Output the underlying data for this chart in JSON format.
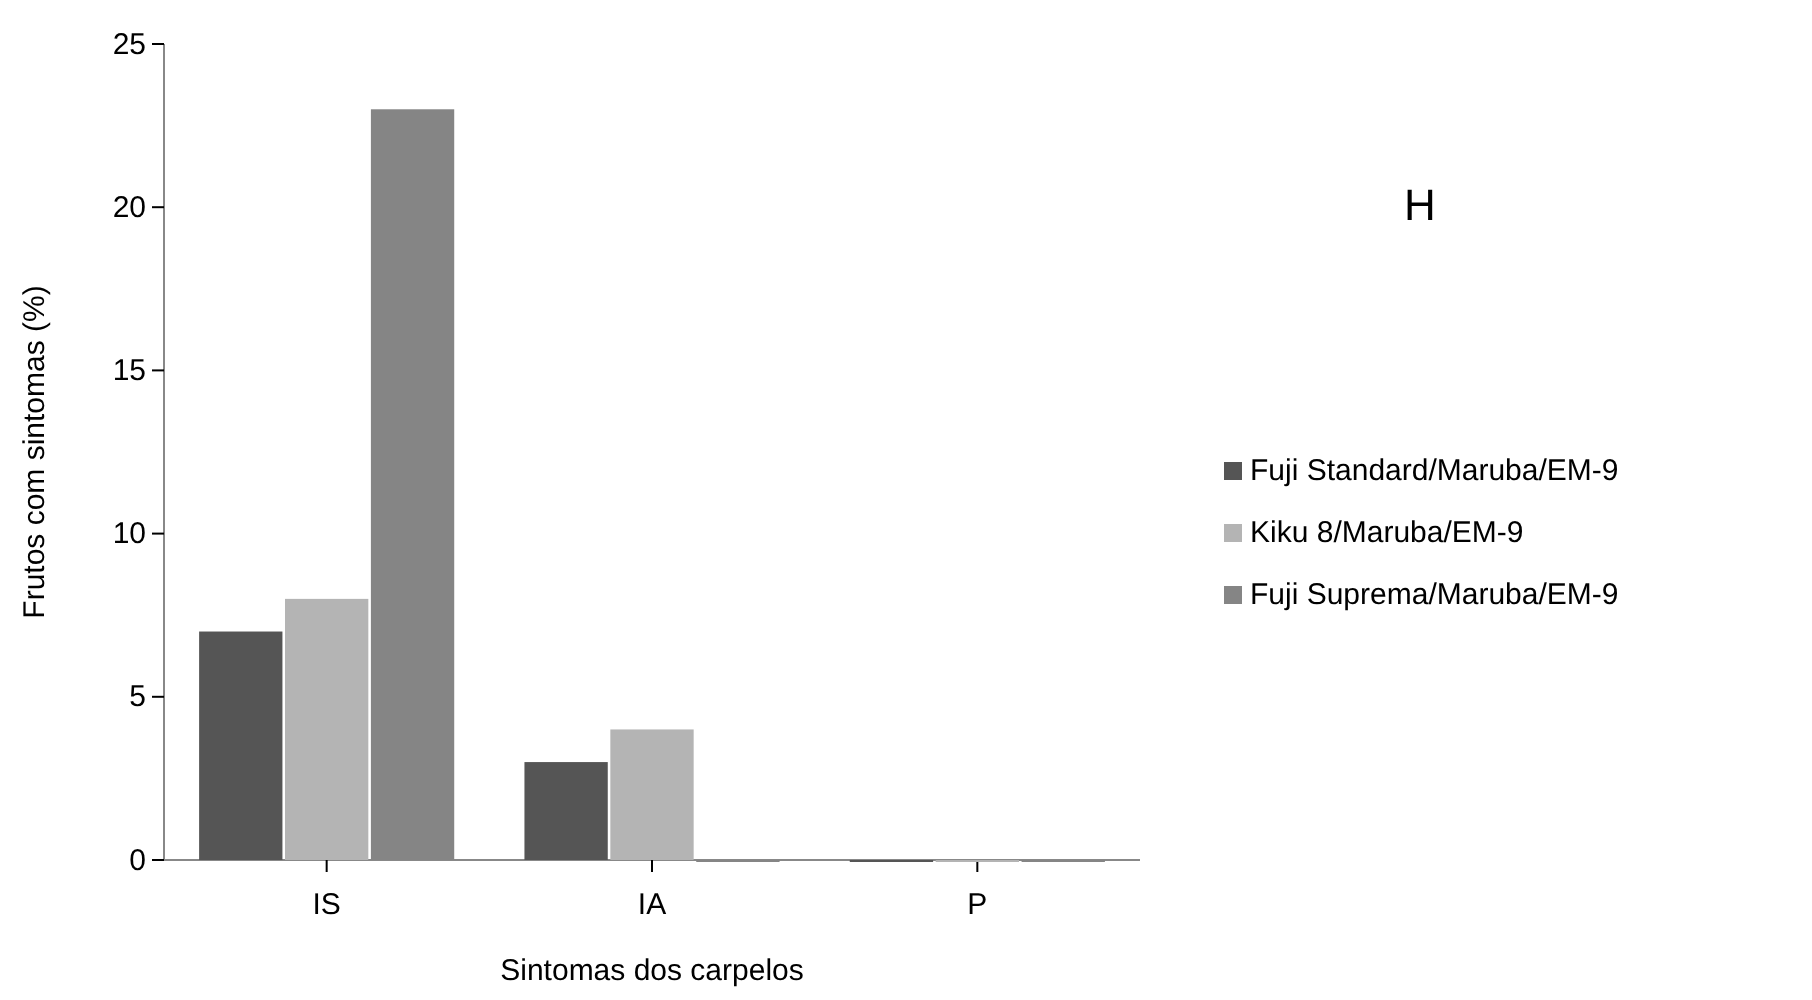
{
  "chart_data": {
    "type": "bar",
    "xlabel": "Sintomas dos carpelos",
    "ylabel": "Frutos com sintomas (%)",
    "categories": [
      "IS",
      "IA",
      "P"
    ],
    "series": [
      {
        "name": "Fuji Standard/Maruba/EM-9",
        "color": "#555555",
        "values": [
          7,
          3,
          0
        ]
      },
      {
        "name": "Kiku 8/Maruba/EM-9",
        "color": "#b4b4b4",
        "values": [
          8,
          4,
          0
        ]
      },
      {
        "name": "Fuji Suprema/Maruba/EM-9",
        "color": "#858585",
        "values": [
          23,
          0,
          0
        ]
      }
    ],
    "ylim": [
      0,
      25
    ],
    "yticks": [
      0,
      5,
      10,
      15,
      20,
      25
    ],
    "grid": false,
    "legend": "right",
    "annotations": [
      "H"
    ]
  }
}
